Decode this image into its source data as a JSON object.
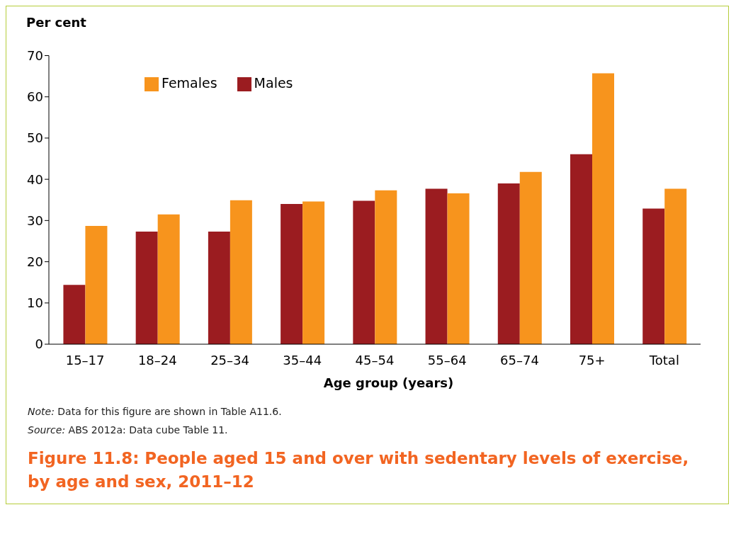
{
  "chart_data": {
    "type": "bar",
    "title": "Figure 11.8: People aged 15 and over with sedentary levels of exercise, by age and sex, 2011–12",
    "ylabel": "Per cent",
    "xlabel": "Age group (years)",
    "categories": [
      "15–17",
      "18–24",
      "25–34",
      "35–44",
      "45–54",
      "55–64",
      "65–74",
      "75+",
      "Total"
    ],
    "series": [
      {
        "name": "Males",
        "color": "#9b1c20",
        "values": [
          14.4,
          27.3,
          27.3,
          34.0,
          34.8,
          37.7,
          39.0,
          46.1,
          32.9
        ]
      },
      {
        "name": "Females",
        "color": "#f7941d",
        "values": [
          28.7,
          31.5,
          34.9,
          34.6,
          37.3,
          36.6,
          41.8,
          65.7,
          37.7
        ]
      }
    ],
    "ylim": [
      0,
      70
    ],
    "yticks": [
      0,
      10,
      20,
      30,
      40,
      50,
      60,
      70
    ],
    "grid": false,
    "legend": "top left",
    "annotations": [
      "Note: Data for this figure are shown in Table A11.6.",
      "Source: ABS 2012a: Data cube Table 11."
    ]
  }
}
